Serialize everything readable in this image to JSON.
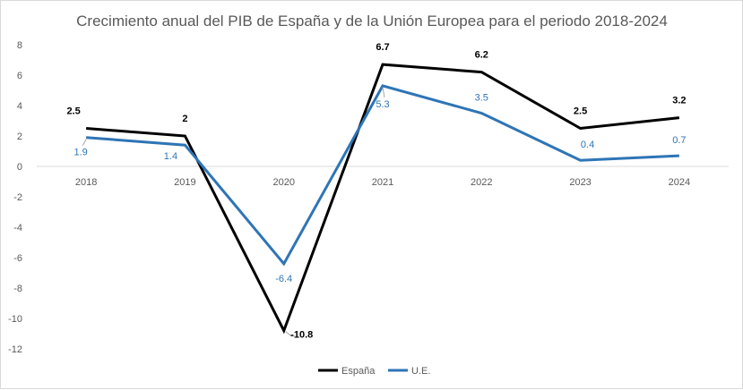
{
  "chart_data": {
    "type": "line",
    "title": "Crecimiento anual del PIB de España y de la Unión Europea para el periodo 2018-2024",
    "xlabel": "",
    "ylabel": "",
    "categories": [
      "2018",
      "2019",
      "2020",
      "2021",
      "2022",
      "2023",
      "2024"
    ],
    "ylim": [
      -12,
      8
    ],
    "yticks": [
      8,
      6,
      4,
      2,
      0,
      -2,
      -4,
      -6,
      -8,
      -10,
      -12
    ],
    "grid": false,
    "legend_position": "bottom",
    "series": [
      {
        "name": "España",
        "color": "#000000",
        "values": [
          2.5,
          2,
          -10.8,
          6.7,
          6.2,
          2.5,
          3.2
        ],
        "labels": [
          "2.5",
          "2",
          "-10.8",
          "6.7",
          "6.2",
          "2.5",
          "3.2"
        ]
      },
      {
        "name": "U.E.",
        "color": "#2e75b6",
        "values": [
          1.9,
          1.4,
          -6.4,
          5.3,
          3.5,
          0.4,
          0.7
        ],
        "labels": [
          "1.9",
          "1.4",
          "-6.4",
          "5.3",
          "3.5",
          "0.4",
          "0.7"
        ]
      }
    ]
  }
}
